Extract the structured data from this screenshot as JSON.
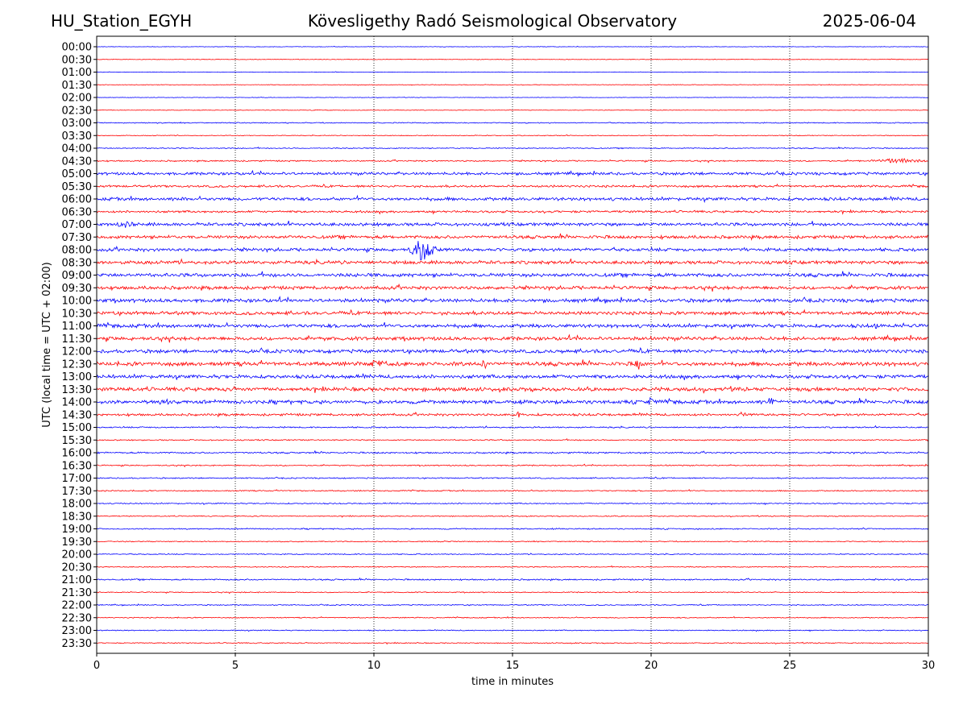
{
  "header": {
    "station": "HU_Station_EGYH",
    "observatory": "Kövesligethy Radó Seismological Observatory",
    "date": "2025-06-04"
  },
  "chart_data": {
    "type": "line",
    "title": "Kövesligethy Radó Seismological Observatory",
    "xlabel": "time in minutes",
    "ylabel": "UTC (local time = UTC + 02:00)",
    "xlim": [
      0,
      30
    ],
    "x_ticks": [
      0,
      5,
      10,
      15,
      20,
      25,
      30
    ],
    "grid": "vertical dotted lines at 5-minute ticks",
    "colors": {
      "even_rows": "#0000ff",
      "odd_rows": "#ff0000",
      "grid": "#000000"
    },
    "rows": [
      "00:00",
      "00:30",
      "01:00",
      "01:30",
      "02:00",
      "02:30",
      "03:00",
      "03:30",
      "04:00",
      "04:30",
      "05:00",
      "05:30",
      "06:00",
      "06:30",
      "07:00",
      "07:30",
      "08:00",
      "08:30",
      "09:00",
      "09:30",
      "10:00",
      "10:30",
      "11:00",
      "11:30",
      "12:00",
      "12:30",
      "13:00",
      "13:30",
      "14:00",
      "14:30",
      "15:00",
      "15:30",
      "16:00",
      "16:30",
      "17:00",
      "17:30",
      "18:00",
      "18:30",
      "19:00",
      "19:30",
      "20:00",
      "20:30",
      "21:00",
      "21:30",
      "22:00",
      "22:30",
      "23:00",
      "23:30"
    ],
    "noise_level": [
      0.25,
      0.3,
      0.25,
      0.3,
      0.25,
      0.3,
      0.5,
      0.4,
      0.5,
      0.7,
      1.4,
      1.1,
      1.6,
      1.1,
      1.6,
      1.6,
      1.6,
      1.7,
      1.8,
      1.7,
      1.8,
      1.7,
      1.8,
      1.8,
      1.8,
      2.0,
      1.8,
      1.9,
      1.8,
      1.2,
      0.7,
      0.6,
      0.8,
      0.6,
      0.6,
      0.6,
      0.6,
      0.5,
      0.6,
      0.5,
      0.5,
      0.5,
      0.7,
      0.5,
      0.5,
      0.5,
      0.5,
      0.5
    ],
    "events": [
      {
        "row": "04:30",
        "start_min": 27.5,
        "end_min": 30.0,
        "amplitude": 3
      },
      {
        "row": "08:00",
        "start_min": 11.2,
        "end_min": 12.3,
        "amplitude": 16
      },
      {
        "row": "12:30",
        "start_min": 9.7,
        "end_min": 10.5,
        "amplitude": 5
      },
      {
        "row": "12:30",
        "start_min": 13.9,
        "end_min": 14.1,
        "amplitude": 7
      },
      {
        "row": "12:30",
        "start_min": 19.4,
        "end_min": 19.7,
        "amplitude": 6
      },
      {
        "row": "14:00",
        "start_min": 2.3,
        "end_min": 2.8,
        "amplitude": 5
      },
      {
        "row": "14:00",
        "start_min": 19.8,
        "end_min": 20.2,
        "amplitude": 6
      },
      {
        "row": "14:00",
        "start_min": 24.1,
        "end_min": 24.6,
        "amplitude": 5
      },
      {
        "row": "14:30",
        "start_min": 15.1,
        "end_min": 15.4,
        "amplitude": 6
      },
      {
        "row": "14:30",
        "start_min": 23.2,
        "end_min": 23.4,
        "amplitude": 6
      },
      {
        "row": "11:00",
        "start_min": 28.0,
        "end_min": 28.3,
        "amplitude": 5
      },
      {
        "row": "07:00",
        "start_min": 0.6,
        "end_min": 1.4,
        "amplitude": 4
      }
    ]
  }
}
